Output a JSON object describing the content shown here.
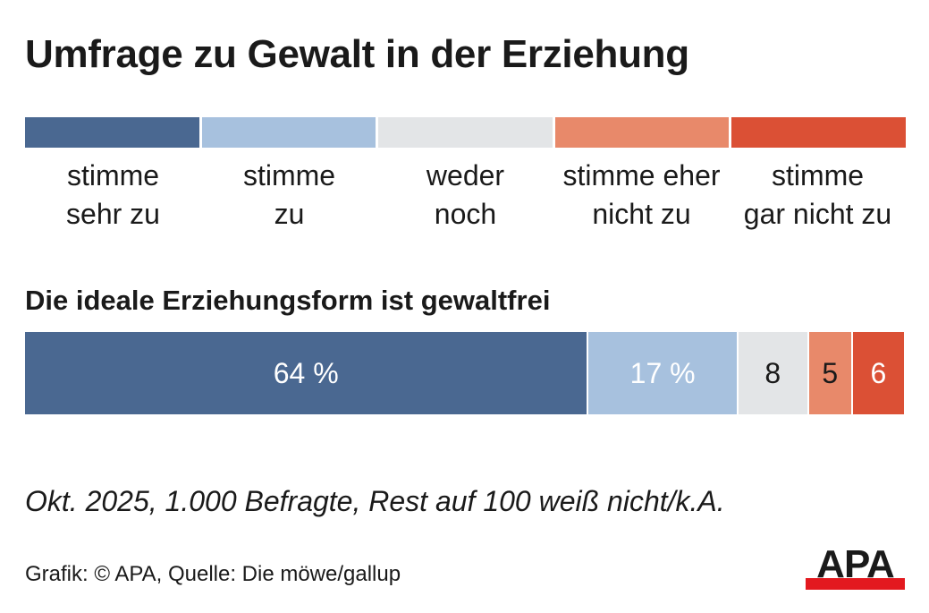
{
  "title": "Umfrage zu Gewalt in der Erziehung",
  "legend": [
    {
      "label": "stimme\nsehr zu",
      "color": "#4a6891"
    },
    {
      "label": "stimme\nzu",
      "color": "#a7c1de"
    },
    {
      "label": "weder\nnoch",
      "color": "#e3e5e7"
    },
    {
      "label": "stimme eher\nnicht zu",
      "color": "#e8896a"
    },
    {
      "label": "stimme\ngar nicht zu",
      "color": "#db5035"
    }
  ],
  "note": "Okt. 2025, 1.000 Befragte, Rest auf 100 weiß nicht/k.A.",
  "source": "Grafik: © APA, Quelle: Die möwe/gallup",
  "logo": {
    "text": "APA",
    "icon": "apa-logo-icon",
    "accent_color": "#e3191f"
  },
  "chart_data": {
    "type": "bar",
    "orientation": "horizontal-stacked",
    "title": "Umfrage zu Gewalt in der Erziehung",
    "categories": [
      "Die ideale Erziehungsform ist gewaltfrei"
    ],
    "series": [
      {
        "name": "stimme sehr zu",
        "values": [
          64
        ],
        "label": "64 %",
        "color": "#4a6891",
        "text_color": "#ffffff"
      },
      {
        "name": "stimme zu",
        "values": [
          17
        ],
        "label": "17 %",
        "color": "#a7c1de",
        "text_color": "#ffffff"
      },
      {
        "name": "weder noch",
        "values": [
          8
        ],
        "label": "8",
        "color": "#e3e5e7",
        "text_color": "#1a1a1a"
      },
      {
        "name": "stimme eher nicht zu",
        "values": [
          5
        ],
        "label": "5",
        "color": "#e8896a",
        "text_color": "#1a1a1a"
      },
      {
        "name": "stimme gar nicht zu",
        "values": [
          6
        ],
        "label": "6",
        "color": "#db5035",
        "text_color": "#ffffff"
      }
    ],
    "xlim": [
      0,
      100
    ],
    "unit": "%",
    "legend_position": "top",
    "grid": false,
    "annotation": "Okt. 2025, 1.000 Befragte, Rest auf 100 weiß nicht/k.A."
  }
}
